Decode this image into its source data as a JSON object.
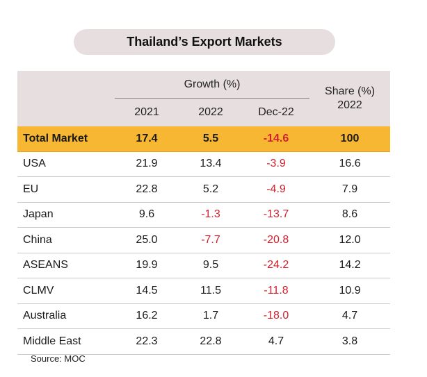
{
  "title": "Thailand’s Export Markets",
  "chart_data": {
    "type": "table",
    "title": "Thailand’s Export Markets",
    "header": {
      "growth_group": "Growth (%)",
      "share_group": "Share (%)",
      "share_year": "2022",
      "years": [
        "2021",
        "2022",
        "Dec-22"
      ]
    },
    "rows": [
      {
        "market": "Total Market",
        "g2021": "17.4",
        "g2022": "5.5",
        "dec22": "-14.6",
        "share": "100"
      },
      {
        "market": "USA",
        "g2021": "21.9",
        "g2022": "13.4",
        "dec22": "-3.9",
        "share": "16.6"
      },
      {
        "market": "EU",
        "g2021": "22.8",
        "g2022": "5.2",
        "dec22": "-4.9",
        "share": "7.9"
      },
      {
        "market": "Japan",
        "g2021": "9.6",
        "g2022": "-1.3",
        "dec22": "-13.7",
        "share": "8.6"
      },
      {
        "market": "China",
        "g2021": "25.0",
        "g2022": "-7.7",
        "dec22": "-20.8",
        "share": "12.0"
      },
      {
        "market": "ASEANS",
        "g2021": "19.9",
        "g2022": "9.5",
        "dec22": "-24.2",
        "share": "14.2"
      },
      {
        "market": "CLMV",
        "g2021": "14.5",
        "g2022": "11.5",
        "dec22": "-11.8",
        "share": "10.9"
      },
      {
        "market": "Australia",
        "g2021": "16.2",
        "g2022": "1.7",
        "dec22": "-18.0",
        "share": "4.7"
      },
      {
        "market": "Middle East",
        "g2021": "22.3",
        "g2022": "22.8",
        "dec22": "4.7",
        "share": "3.8"
      }
    ]
  },
  "source": "Source: MOC",
  "colors": {
    "header_bg": "#e7dfdf",
    "total_row_bg": "#f7b733",
    "negative": "#d0202e"
  }
}
